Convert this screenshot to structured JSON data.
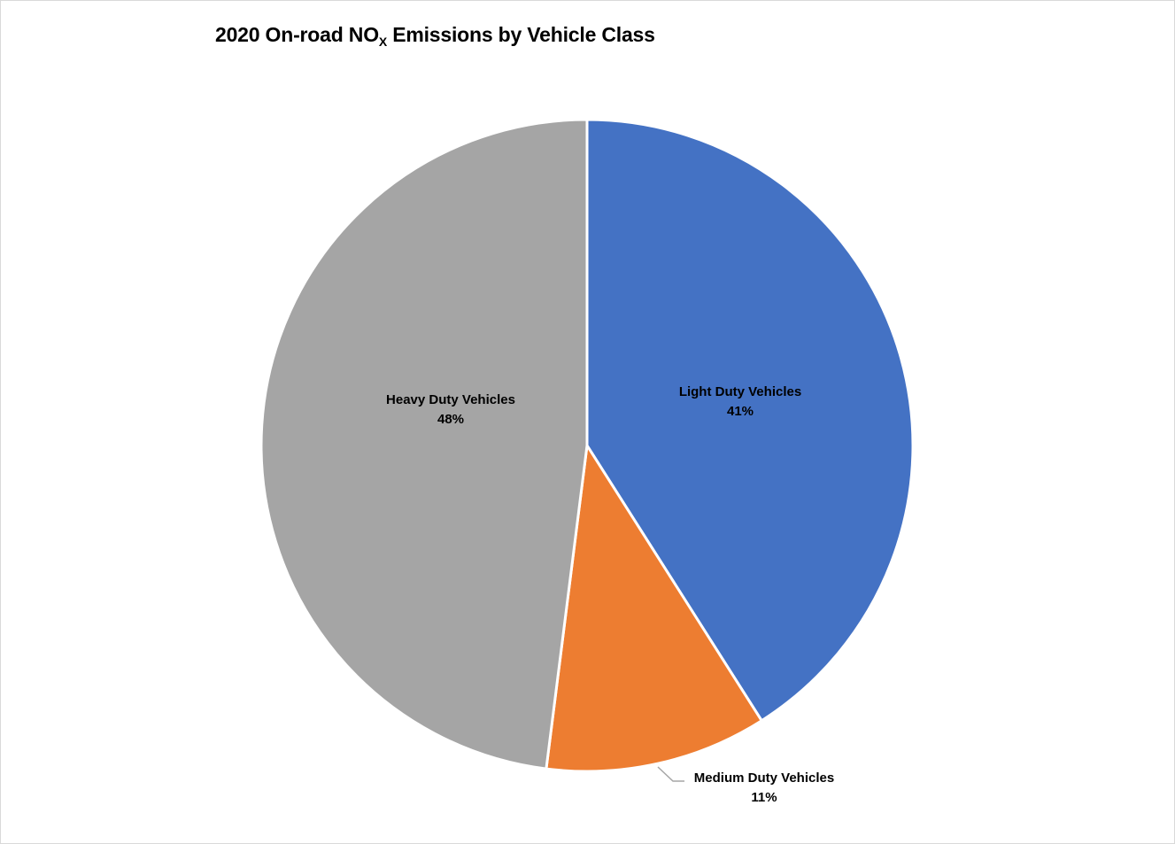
{
  "chart": {
    "title_prefix": "2020 On-road NO",
    "title_subscript": "X",
    "title_suffix": " Emissions by Vehicle Class"
  },
  "chart_data": {
    "type": "pie",
    "title": "2020 On-road NOx Emissions by Vehicle Class",
    "categories": [
      "Light Duty Vehicles",
      "Medium Duty Vehicles",
      "Heavy Duty Vehicles"
    ],
    "values": [
      41,
      11,
      48
    ],
    "units": "%",
    "colors": [
      "#4472c4",
      "#ed7d31",
      "#a5a5a5"
    ],
    "start_angle": "12 o'clock, clockwise",
    "legend": "none (data labels with category name and percentage)",
    "labels": [
      {
        "name": "Light Duty Vehicles",
        "value": "41%"
      },
      {
        "name": "Medium Duty Vehicles",
        "value": "11%"
      },
      {
        "name": "Heavy Duty Vehicles",
        "value": "48%"
      }
    ]
  }
}
